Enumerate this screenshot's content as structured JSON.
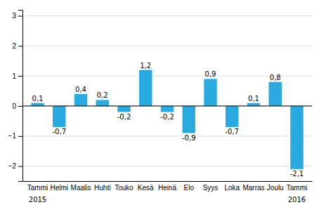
{
  "chart_data": {
    "type": "bar",
    "categories": [
      "Tammi",
      "Helmi",
      "Maalis",
      "Huhti",
      "Touko",
      "Kesä",
      "Heinä",
      "Elo",
      "Syys",
      "Loka",
      "Marras",
      "Joulu",
      "Tammi"
    ],
    "values": [
      0.1,
      -0.7,
      0.4,
      0.2,
      -0.2,
      1.2,
      -0.2,
      -0.9,
      0.9,
      -0.7,
      0.1,
      0.8,
      -2.1
    ],
    "value_labels": [
      "0,1",
      "-0,7",
      "0,4",
      "0,2",
      "-0,2",
      "1,2",
      "-0,2",
      "-0,9",
      "0,9",
      "-0,7",
      "0,1",
      "0,8",
      "-2,1"
    ],
    "data_labels": true,
    "color": "#29abe2",
    "ylim": [
      -2.5,
      3.2
    ],
    "yticks": [
      -2,
      -1,
      0,
      1,
      2,
      3
    ],
    "grid": true,
    "annotations": [
      {
        "text": "2015",
        "x": 0
      },
      {
        "text": "2016",
        "x": 12
      }
    ]
  }
}
